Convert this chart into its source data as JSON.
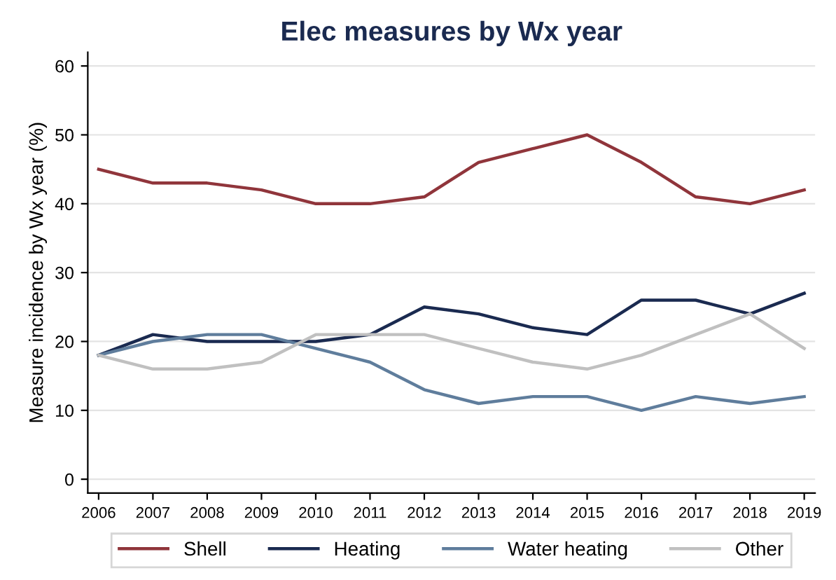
{
  "chart_data": {
    "type": "line",
    "title": "Elec measures by Wx year",
    "ylabel": "Measure incidence by Wx year (%)",
    "x": [
      2006,
      2007,
      2008,
      2009,
      2010,
      2011,
      2012,
      2013,
      2014,
      2015,
      2016,
      2017,
      2018,
      2019
    ],
    "series": [
      {
        "name": "Shell",
        "color": "#90353b",
        "values": [
          45,
          43,
          43,
          42,
          40,
          40,
          41,
          46,
          48,
          50,
          46,
          41,
          40,
          42
        ]
      },
      {
        "name": "Heating",
        "color": "#1a2a50",
        "values": [
          18,
          21,
          20,
          20,
          20,
          21,
          25,
          24,
          22,
          21,
          26,
          26,
          24,
          27
        ]
      },
      {
        "name": "Water heating",
        "color": "#5f7d9c",
        "values": [
          18,
          20,
          21,
          21,
          19,
          17,
          13,
          11,
          12,
          12,
          10,
          12,
          11,
          12
        ]
      },
      {
        "name": "Other",
        "color": "#c0c0c0",
        "values": [
          18,
          16,
          16,
          17,
          21,
          21,
          21,
          19,
          17,
          16,
          18,
          21,
          24,
          19
        ]
      }
    ],
    "xlim": [
      2005.8,
      2019.2
    ],
    "xticks": [
      2006,
      2007,
      2008,
      2009,
      2010,
      2011,
      2012,
      2013,
      2014,
      2015,
      2016,
      2017,
      2018,
      2019
    ],
    "ylim": [
      -2,
      62
    ],
    "yticks": [
      0,
      10,
      20,
      30,
      40,
      50,
      60
    ],
    "grid": "y",
    "legend": "bottom",
    "marker": "none",
    "line_style": "solid"
  }
}
